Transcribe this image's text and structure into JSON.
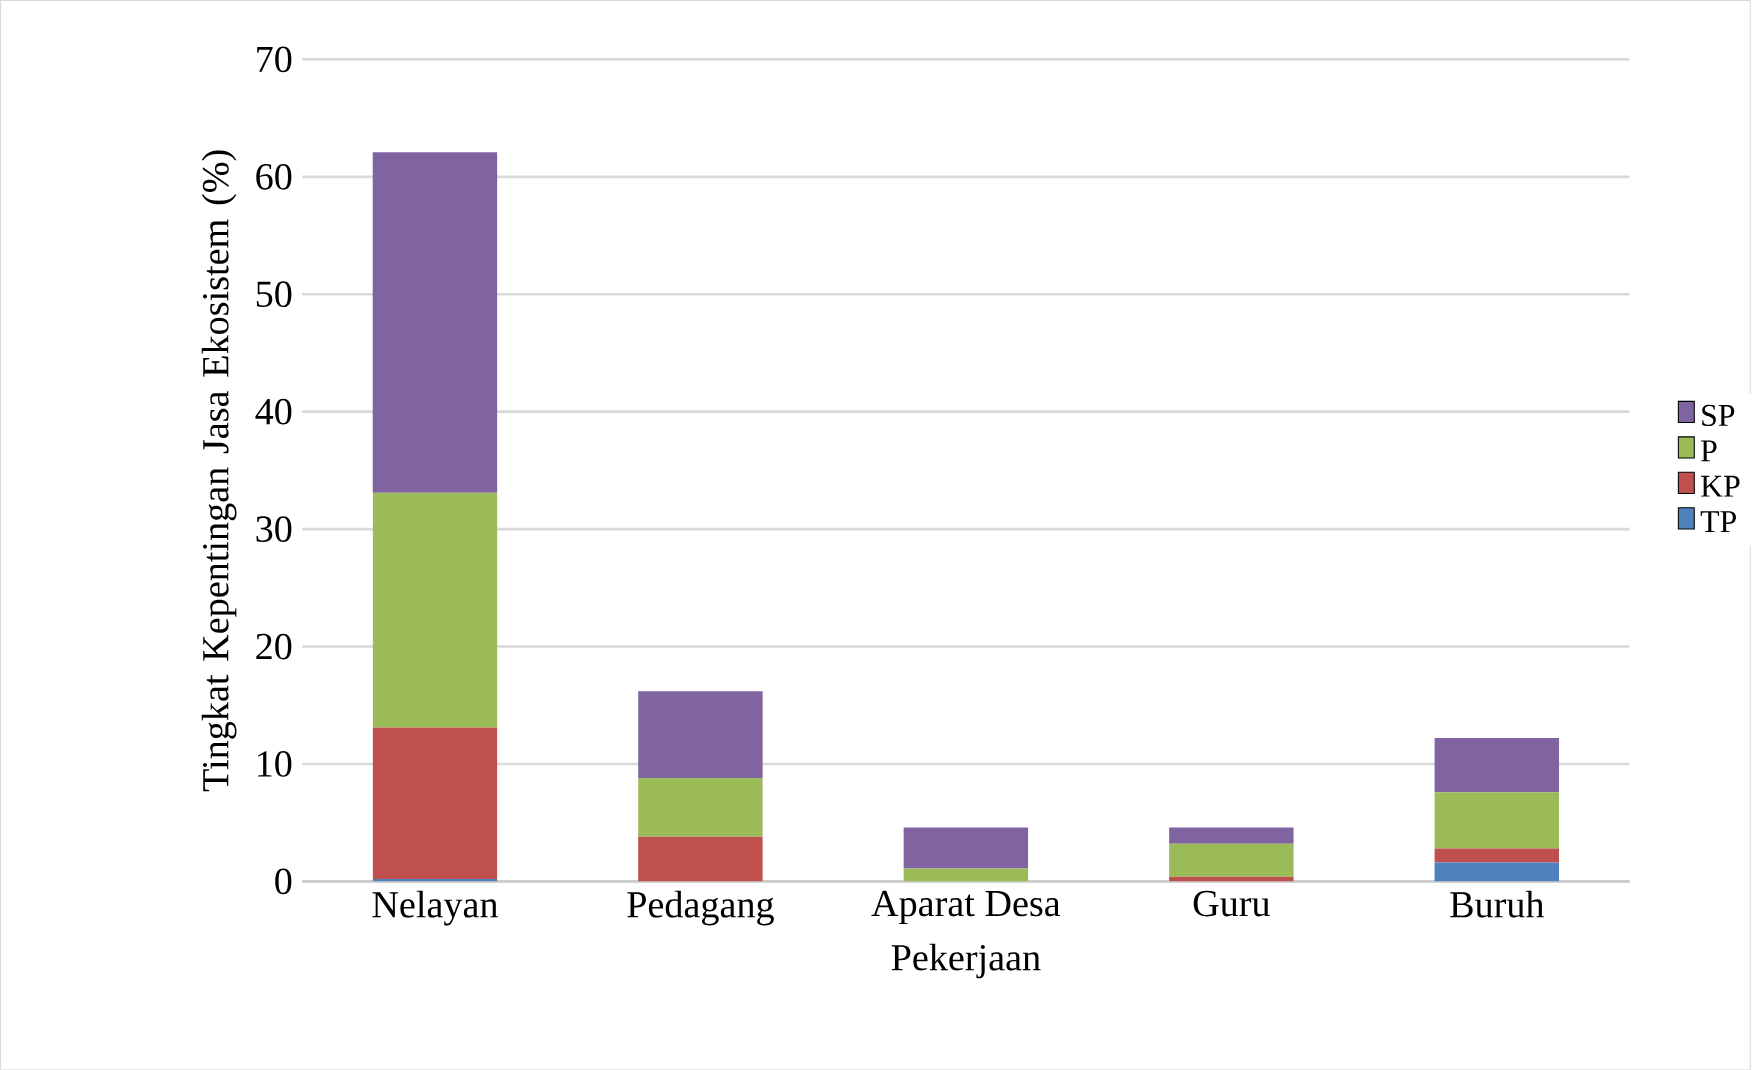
{
  "chart_data": {
    "type": "bar",
    "stacked": true,
    "xlabel": "Pekerjaan",
    "ylabel": "Tingkat Kepentingan Jasa Ekosistem (%)",
    "categories": [
      "Nelayan",
      "Pedagang",
      "Aparat Desa",
      "Guru",
      "Buruh"
    ],
    "series": [
      {
        "name": "TP",
        "color": "#4f81bd",
        "values": [
          0.2,
          0,
          0,
          0,
          1.6
        ]
      },
      {
        "name": "KP",
        "color": "#c0504d",
        "values": [
          12.9,
          3.8,
          0,
          0.4,
          1.2
        ]
      },
      {
        "name": "P",
        "color": "#9bbb59",
        "values": [
          20.0,
          5.0,
          1.1,
          2.8,
          4.8
        ]
      },
      {
        "name": "SP",
        "color": "#8064a2",
        "values": [
          29.0,
          7.4,
          3.5,
          1.4,
          4.6
        ]
      }
    ],
    "ylim": [
      0,
      70
    ],
    "yticks": [
      0,
      10,
      20,
      30,
      40,
      50,
      60,
      70
    ],
    "grid": "y",
    "legend": "right"
  }
}
